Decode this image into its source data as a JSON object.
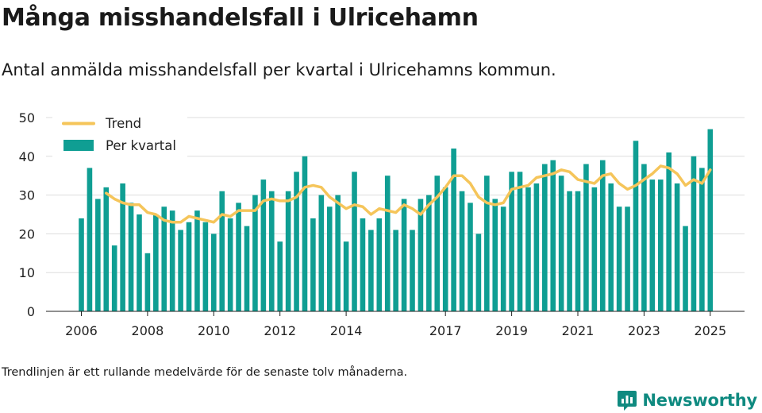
{
  "header": {
    "title": "Många misshandelsfall i Ulricehamn",
    "subtitle": "Antal anmälda misshandelsfall per kvartal i Ulricehamns kommun."
  },
  "footer": {
    "note": "Trendlinjen är ett rullande medelvärde för de senaste tolv månaderna.",
    "brand": "Newsworthy"
  },
  "colors": {
    "bar": "#0f9e93",
    "trend": "#f5c55a",
    "grid": "#dddddd",
    "brand": "#0f8a80"
  },
  "icons": {
    "brand_logo": "newsworthy-logo-icon"
  },
  "chart_data": {
    "type": "bar",
    "title": "Många misshandelsfall i Ulricehamn",
    "ylim": [
      0,
      50
    ],
    "y_ticks": [
      0,
      10,
      20,
      30,
      40,
      50
    ],
    "x_ticks": [
      "2006",
      "2008",
      "2010",
      "2012",
      "2014",
      "2017",
      "2019",
      "2021",
      "2023",
      "2025"
    ],
    "grid": true,
    "legend_position": "top-left",
    "categories": [
      "2006 Q1",
      "2006 Q2",
      "2006 Q3",
      "2006 Q4",
      "2007 Q1",
      "2007 Q2",
      "2007 Q3",
      "2007 Q4",
      "2008 Q1",
      "2008 Q2",
      "2008 Q3",
      "2008 Q4",
      "2009 Q1",
      "2009 Q2",
      "2009 Q3",
      "2009 Q4",
      "2010 Q1",
      "2010 Q2",
      "2010 Q3",
      "2010 Q4",
      "2011 Q1",
      "2011 Q2",
      "2011 Q3",
      "2011 Q4",
      "2012 Q1",
      "2012 Q2",
      "2012 Q3",
      "2012 Q4",
      "2013 Q1",
      "2013 Q2",
      "2013 Q3",
      "2013 Q4",
      "2014 Q1",
      "2014 Q2",
      "2014 Q3",
      "2014 Q4",
      "2015 Q1",
      "2015 Q2",
      "2015 Q3",
      "2015 Q4",
      "2016 Q1",
      "2016 Q2",
      "2016 Q3",
      "2016 Q4",
      "2017 Q1",
      "2017 Q2",
      "2017 Q3",
      "2017 Q4",
      "2018 Q1",
      "2018 Q2",
      "2018 Q3",
      "2018 Q4",
      "2019 Q1",
      "2019 Q2",
      "2019 Q3",
      "2019 Q4",
      "2020 Q1",
      "2020 Q2",
      "2020 Q3",
      "2020 Q4",
      "2021 Q1",
      "2021 Q2",
      "2021 Q3",
      "2021 Q4",
      "2022 Q1",
      "2022 Q2",
      "2022 Q3",
      "2022 Q4",
      "2023 Q1",
      "2023 Q2",
      "2023 Q3",
      "2023 Q4",
      "2024 Q1",
      "2024 Q2",
      "2024 Q3",
      "2024 Q4",
      "2025 Q1"
    ],
    "series": [
      {
        "name": "Per kvartal",
        "type": "bar",
        "values": [
          24,
          37,
          29,
          32,
          17,
          33,
          28,
          25,
          15,
          25,
          27,
          26,
          21,
          23,
          26,
          23,
          20,
          31,
          24,
          28,
          22,
          30,
          34,
          31,
          18,
          31,
          36,
          40,
          24,
          30,
          27,
          30,
          18,
          36,
          24,
          21,
          24,
          35,
          21,
          29,
          21,
          29,
          30,
          35,
          32,
          42,
          31,
          28,
          20,
          35,
          29,
          27,
          36,
          36,
          32,
          33,
          38,
          39,
          35,
          31,
          31,
          38,
          32,
          39,
          33,
          27,
          27,
          44,
          38,
          34,
          34,
          41,
          33,
          22,
          40,
          37,
          47
        ]
      },
      {
        "name": "Trend",
        "type": "line",
        "values": [
          null,
          null,
          null,
          30.5,
          29,
          28,
          27.5,
          27.5,
          25.5,
          25,
          23.5,
          23,
          23,
          24.5,
          24,
          23.5,
          23,
          25,
          24.5,
          26,
          26,
          26,
          28.5,
          29,
          28.5,
          28.5,
          29.5,
          32,
          32.5,
          32,
          29.5,
          28,
          26.5,
          27.5,
          27,
          25,
          26.5,
          26,
          25.5,
          27.5,
          26.5,
          25,
          27.5,
          29.5,
          32,
          35,
          35,
          33,
          29.5,
          28,
          27.5,
          28,
          31.5,
          32,
          32.5,
          34.5,
          35,
          35.5,
          36.5,
          36,
          34,
          33.5,
          33,
          35,
          35.5,
          33,
          31.5,
          32.5,
          34,
          35.5,
          37.5,
          37,
          35.5,
          32.5,
          34,
          33,
          36.5
        ]
      }
    ]
  }
}
